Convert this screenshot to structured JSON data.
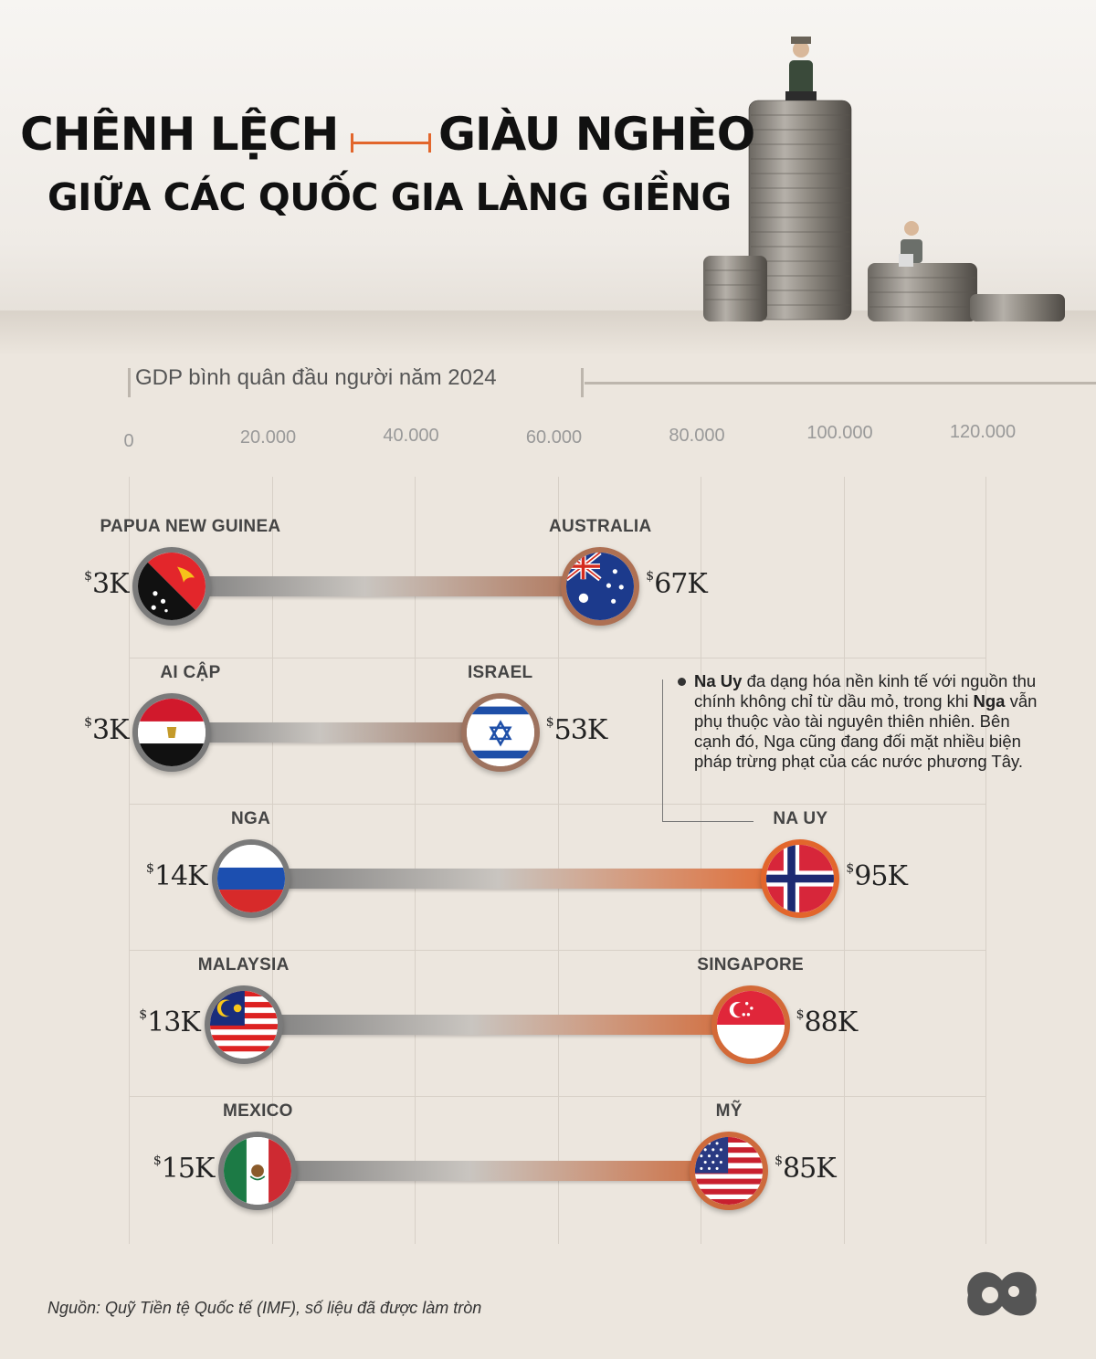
{
  "header": {
    "title_line1_left": "CHÊNH LỆCH",
    "title_line1_right": "GIÀU NGHÈO",
    "title_line2": "GIỮA CÁC QUỐC GIA LÀNG GIỀNG"
  },
  "chart_data": {
    "type": "range",
    "title": "GDP bình quân đầu người năm 2024",
    "xlim": [
      0,
      120000
    ],
    "ticks": [
      {
        "value": 0,
        "label": "0"
      },
      {
        "value": 20000,
        "label": "20.000"
      },
      {
        "value": 40000,
        "label": "40.000"
      },
      {
        "value": 60000,
        "label": "60.000"
      },
      {
        "value": 80000,
        "label": "80.000"
      },
      {
        "value": 100000,
        "label": "100.000"
      },
      {
        "value": 120000,
        "label": "120.000"
      }
    ],
    "pairs": [
      {
        "low": {
          "country": "PAPUA NEW GUINEA",
          "value": 3000,
          "label": "3K",
          "flag": "papua-new-guinea"
        },
        "high": {
          "country": "AUSTRALIA",
          "value": 67000,
          "label": "67K",
          "flag": "australia"
        }
      },
      {
        "low": {
          "country": "AI CẬP",
          "value": 3000,
          "label": "3K",
          "flag": "egypt"
        },
        "high": {
          "country": "ISRAEL",
          "value": 53000,
          "label": "53K",
          "flag": "israel"
        }
      },
      {
        "low": {
          "country": "NGA",
          "value": 14000,
          "label": "14K",
          "flag": "russia"
        },
        "high": {
          "country": "NA UY",
          "value": 95000,
          "label": "95K",
          "flag": "norway"
        }
      },
      {
        "low": {
          "country": "MALAYSIA",
          "value": 13000,
          "label": "13K",
          "flag": "malaysia"
        },
        "high": {
          "country": "SINGAPORE",
          "value": 88000,
          "label": "88K",
          "flag": "singapore"
        }
      },
      {
        "low": {
          "country": "MEXICO",
          "value": 15000,
          "label": "15K",
          "flag": "mexico"
        },
        "high": {
          "country": "MỸ",
          "value": 85000,
          "label": "85K",
          "flag": "usa"
        }
      }
    ],
    "currency_symbol": "$",
    "colors": {
      "low": "#7a7a7a",
      "mid": "#c9c5c0",
      "high": "#e2662c"
    }
  },
  "note": {
    "part1_bold": "Na Uy",
    "part2": " đa dạng hóa nền kinh tế với nguồn thu chính không chỉ từ dầu mỏ, trong khi ",
    "part3_bold": "Nga",
    "part4": " vẫn phụ thuộc vào tài nguyên thiên nhiên. Bên cạnh đó, Nga cũng đang đối mặt nhiều biện pháp trừng phạt của các nước phương Tây."
  },
  "footer": {
    "source": "Nguồn: Quỹ Tiền tệ Quốc tế (IMF), số liệu đã được làm tròn",
    "logo_icon": "brand-logo-icon"
  }
}
